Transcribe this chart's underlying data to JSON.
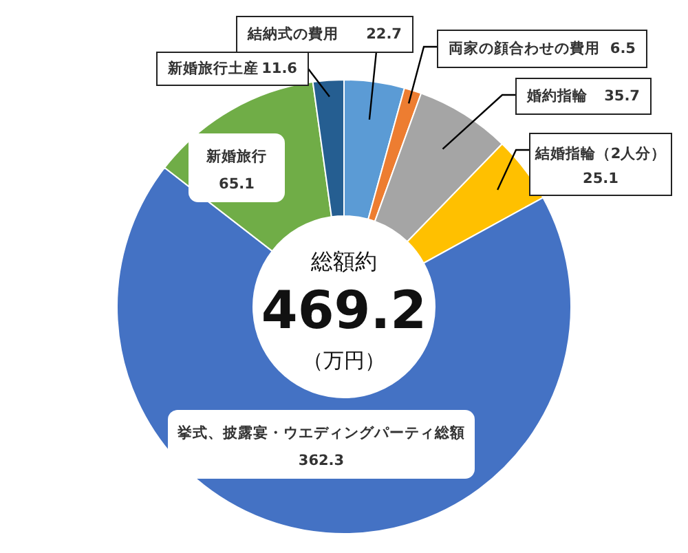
{
  "chart_data": {
    "type": "donut",
    "categories": [
      "結納式の費用",
      "両家の顔合わせの費用",
      "婚約指輪",
      "結婚指輪（2人分）",
      "挙式、披露宴・ウエディングパーティ総額",
      "新婚旅行",
      "新婚旅行土産"
    ],
    "values": [
      22.7,
      6.5,
      35.7,
      25.1,
      362.3,
      65.1,
      11.6
    ],
    "colors": [
      "#5b9bd5",
      "#ed7d31",
      "#a5a5a5",
      "#ffc000",
      "#4472c4",
      "#70ad47",
      "#255e91"
    ],
    "data_labels": true,
    "annotations": [
      "総額約",
      "469.2",
      "（万円）"
    ]
  }
}
